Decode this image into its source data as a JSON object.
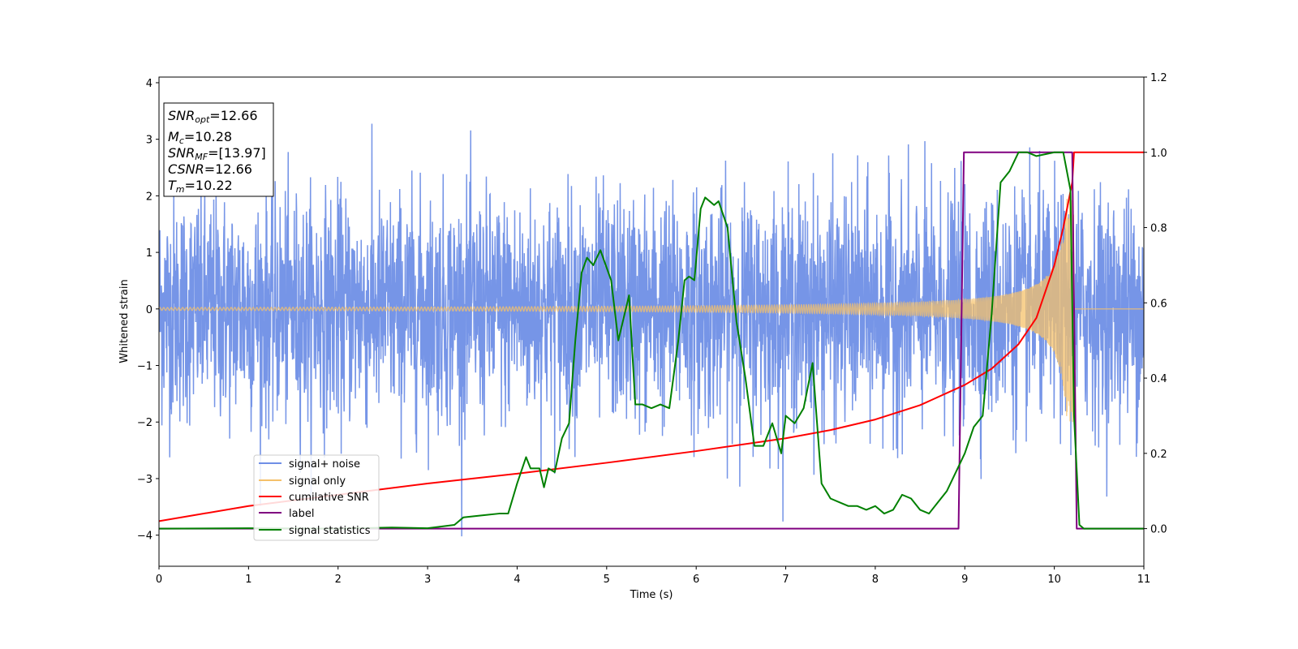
{
  "chart_data": {
    "type": "line",
    "xlabel": "Time (s)",
    "ylabel": "Whitened strain",
    "xlim": [
      0,
      11
    ],
    "ylim_left": [
      -4.55,
      4.1
    ],
    "ylim_right": [
      -0.1,
      1.2
    ],
    "x_ticks": [
      0,
      1,
      2,
      3,
      4,
      5,
      6,
      7,
      8,
      9,
      10,
      11
    ],
    "y_ticks_left": [
      4,
      3,
      2,
      1,
      0,
      -1,
      -2,
      -3,
      -4
    ],
    "y_tick_labels_left": [
      "4",
      "3",
      "2",
      "1",
      "0",
      "−1",
      "−2",
      "−3",
      "−4"
    ],
    "y_ticks_right": [
      1.2,
      1.0,
      0.8,
      0.6,
      0.4,
      0.2,
      0.0
    ],
    "y_tick_labels_right": [
      "1.2",
      "1.0",
      "0.8",
      "0.6",
      "0.4",
      "0.2",
      "0.0"
    ],
    "grid": false,
    "legend_position": "lower-left",
    "info_box": {
      "snr_opt": {
        "base": "SNR",
        "sub": "opt",
        "value": "=12.66"
      },
      "mc": {
        "base": "M",
        "sub": "c",
        "value": "=10.28"
      },
      "snr_mf": {
        "base": "SNR",
        "sub": "MF",
        "value": "=[13.97]"
      },
      "csnr": {
        "base": "CSNR",
        "sub": "",
        "value": "=12.66"
      },
      "tm": {
        "base": "T",
        "sub": "m",
        "value": "=10.22"
      }
    },
    "series": [
      {
        "name": "signal+ noise",
        "axis": "left",
        "color": "#6f8fe6",
        "style": "noise",
        "noise_amplitude": 1.6,
        "noise_peak": 3.65
      },
      {
        "name": "signal only",
        "axis": "left",
        "color": "#f5c16b",
        "style": "chirp",
        "merger_time": 10.22,
        "chirp_peak_amplitude": 2.0
      },
      {
        "name": "cumilative SNR",
        "axis": "right",
        "color": "#ff0000",
        "x": [
          0,
          1,
          2,
          3,
          4,
          5,
          6,
          7,
          7.5,
          8,
          8.5,
          9,
          9.3,
          9.6,
          9.8,
          10.0,
          10.1,
          10.2,
          10.22,
          10.22,
          11
        ],
        "y": [
          0.02,
          0.06,
          0.09,
          0.12,
          0.146,
          0.175,
          0.206,
          0.24,
          0.262,
          0.29,
          0.328,
          0.382,
          0.425,
          0.49,
          0.56,
          0.7,
          0.8,
          0.92,
          1.0,
          1.0,
          1.0
        ]
      },
      {
        "name": "label",
        "axis": "right",
        "color": "#800080",
        "x": [
          0,
          8.93,
          8.99,
          10.2,
          10.25,
          11
        ],
        "y": [
          0,
          0,
          1,
          1,
          0,
          0
        ]
      },
      {
        "name": "signal statistics",
        "axis": "right",
        "color": "#008000",
        "x": [
          0,
          1,
          2,
          2.6,
          3.0,
          3.3,
          3.4,
          3.6,
          3.8,
          3.9,
          4.0,
          4.1,
          4.15,
          4.25,
          4.3,
          4.35,
          4.42,
          4.5,
          4.58,
          4.65,
          4.72,
          4.78,
          4.85,
          4.93,
          5.05,
          5.13,
          5.25,
          5.32,
          5.4,
          5.5,
          5.6,
          5.7,
          5.8,
          5.87,
          5.92,
          5.98,
          6.05,
          6.1,
          6.15,
          6.2,
          6.25,
          6.35,
          6.45,
          6.55,
          6.65,
          6.75,
          6.85,
          6.95,
          7.0,
          7.1,
          7.2,
          7.3,
          7.4,
          7.5,
          7.6,
          7.7,
          7.8,
          7.9,
          8.0,
          8.1,
          8.2,
          8.3,
          8.4,
          8.5,
          8.6,
          8.7,
          8.8,
          8.9,
          9.0,
          9.1,
          9.2,
          9.3,
          9.4,
          9.5,
          9.6,
          9.7,
          9.8,
          10.0,
          10.1,
          10.18,
          10.22,
          10.28,
          10.33,
          10.45,
          11
        ],
        "y": [
          0.0,
          0.001,
          0.0,
          0.003,
          0.001,
          0.01,
          0.03,
          0.035,
          0.04,
          0.04,
          0.12,
          0.19,
          0.16,
          0.16,
          0.11,
          0.16,
          0.15,
          0.24,
          0.28,
          0.5,
          0.68,
          0.72,
          0.7,
          0.74,
          0.66,
          0.5,
          0.62,
          0.33,
          0.33,
          0.32,
          0.33,
          0.32,
          0.5,
          0.66,
          0.67,
          0.66,
          0.85,
          0.88,
          0.87,
          0.86,
          0.87,
          0.8,
          0.55,
          0.4,
          0.22,
          0.22,
          0.28,
          0.2,
          0.3,
          0.28,
          0.32,
          0.44,
          0.12,
          0.08,
          0.07,
          0.06,
          0.06,
          0.05,
          0.06,
          0.04,
          0.05,
          0.09,
          0.08,
          0.05,
          0.04,
          0.07,
          0.1,
          0.15,
          0.2,
          0.27,
          0.3,
          0.57,
          0.92,
          0.95,
          1.0,
          1.0,
          0.99,
          1.0,
          1.0,
          0.9,
          0.3,
          0.01,
          0.0,
          0.0,
          0.0
        ]
      }
    ]
  }
}
